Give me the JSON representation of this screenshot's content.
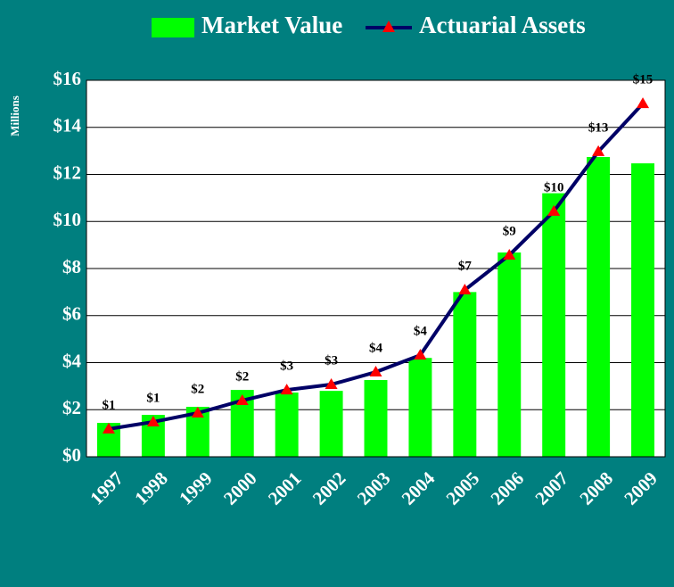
{
  "chart_data": {
    "type": "bar-line",
    "y_axis_label": "Millions",
    "categories": [
      "1997",
      "1998",
      "1999",
      "2000",
      "2001",
      "2002",
      "2003",
      "2004",
      "2005",
      "2006",
      "2007",
      "2008",
      "2009"
    ],
    "series": [
      {
        "name": "Market Value",
        "type": "bar",
        "color": "#00ff00",
        "values": [
          1.44,
          1.78,
          2.12,
          2.84,
          2.73,
          2.8,
          3.26,
          4.2,
          7.0,
          8.68,
          11.2,
          12.74,
          12.47
        ]
      },
      {
        "name": "Actuarial Assets",
        "type": "line",
        "color": "#000066",
        "marker_color": "#ff0000",
        "values": [
          1.18,
          1.48,
          1.86,
          2.39,
          2.84,
          3.07,
          3.6,
          4.32,
          7.09,
          8.57,
          10.43,
          12.97,
          15.01
        ],
        "value_labels": [
          "$1",
          "$1",
          "$2",
          "$2",
          "$3",
          "$3",
          "$4",
          "$4",
          "$7",
          "$9",
          "$10",
          "$13",
          "$15"
        ]
      }
    ],
    "ylim": [
      0,
      16
    ],
    "yticks": [
      {
        "value": 0,
        "label": "$0"
      },
      {
        "value": 2,
        "label": "$2"
      },
      {
        "value": 4,
        "label": "$4"
      },
      {
        "value": 6,
        "label": "$6"
      },
      {
        "value": 8,
        "label": "$8"
      },
      {
        "value": 10,
        "label": "$10"
      },
      {
        "value": 12,
        "label": "$12"
      },
      {
        "value": 14,
        "label": "$14"
      },
      {
        "value": 16,
        "label": "$16"
      }
    ],
    "grid": true
  }
}
